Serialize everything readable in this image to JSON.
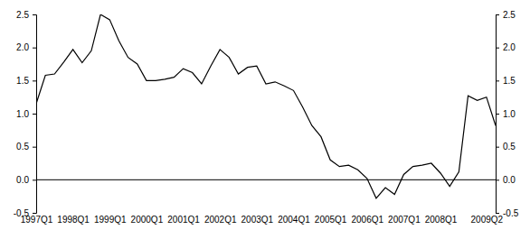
{
  "chart_data": {
    "type": "line",
    "color": "#000000",
    "categories": [
      "1997Q1",
      null,
      null,
      null,
      "1998Q1",
      null,
      null,
      null,
      "1999Q1",
      null,
      null,
      null,
      "2000Q1",
      null,
      null,
      null,
      "2001Q1",
      null,
      null,
      null,
      "2002Q1",
      null,
      null,
      null,
      "2003Q1",
      null,
      null,
      null,
      "2004Q1",
      null,
      null,
      null,
      "2005Q1",
      null,
      null,
      null,
      "2006Q1",
      null,
      null,
      null,
      "2007Q1",
      null,
      null,
      null,
      "2008Q1",
      null,
      null,
      null,
      null,
      "2009Q2",
      null
    ],
    "values": [
      1.15,
      1.58,
      1.6,
      1.78,
      1.97,
      1.77,
      1.95,
      2.5,
      2.42,
      2.1,
      1.85,
      1.75,
      1.5,
      1.5,
      1.52,
      1.55,
      1.68,
      1.62,
      1.45,
      1.72,
      1.97,
      1.85,
      1.6,
      1.7,
      1.72,
      1.45,
      1.48,
      1.42,
      1.35,
      1.1,
      0.82,
      0.65,
      0.3,
      0.2,
      0.22,
      0.15,
      0.02,
      -0.28,
      -0.12,
      -0.22,
      0.08,
      0.2,
      0.22,
      0.25,
      0.1,
      -0.1,
      0.12,
      1.27,
      1.2,
      1.25,
      0.82
    ],
    "ylim": [
      -0.5,
      2.5
    ],
    "yticks": [
      -0.5,
      {
        "value": 0,
        "label": "0.0"
      },
      0.5,
      {
        "value": 1,
        "label": "1.0"
      },
      1.5,
      {
        "value": 2,
        "label": "2.0"
      },
      2.5
    ],
    "y2lim": [
      -0.5,
      2.5
    ],
    "y2ticks": [
      -0.5,
      {
        "value": 0,
        "label": "0.0"
      },
      0.5,
      {
        "value": 1,
        "label": "1.0"
      },
      1.5,
      {
        "value": 2,
        "label": "2.0"
      },
      2.5
    ]
  }
}
